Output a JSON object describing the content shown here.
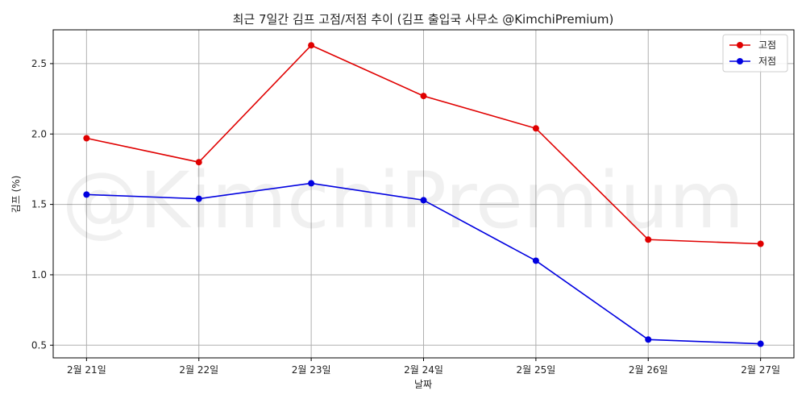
{
  "chart_data": {
    "type": "line",
    "title": "최근 7일간 김프 고점/저점 추이 (김프 출입국 사무소 @KimchiPremium)",
    "xlabel": "날짜",
    "ylabel": "김프 (%)",
    "categories": [
      "2월 21일",
      "2월 22일",
      "2월 23일",
      "2월 24일",
      "2월 25일",
      "2월 26일",
      "2월 27일"
    ],
    "series": [
      {
        "name": "고점",
        "color": "#e00000",
        "values": [
          1.97,
          1.8,
          2.63,
          2.27,
          2.04,
          1.25,
          1.22
        ]
      },
      {
        "name": "저점",
        "color": "#0000e0",
        "values": [
          1.57,
          1.54,
          1.65,
          1.53,
          1.1,
          0.54,
          0.51
        ]
      }
    ],
    "ylim": [
      0.41,
      2.74
    ],
    "yticks": [
      0.5,
      1.0,
      1.5,
      2.0,
      2.5
    ],
    "ytick_labels": [
      "0.5",
      "1.0",
      "1.5",
      "2.0",
      "2.5"
    ],
    "grid": true,
    "legend_position": "top-right",
    "watermark": "@KimchiPremium"
  }
}
